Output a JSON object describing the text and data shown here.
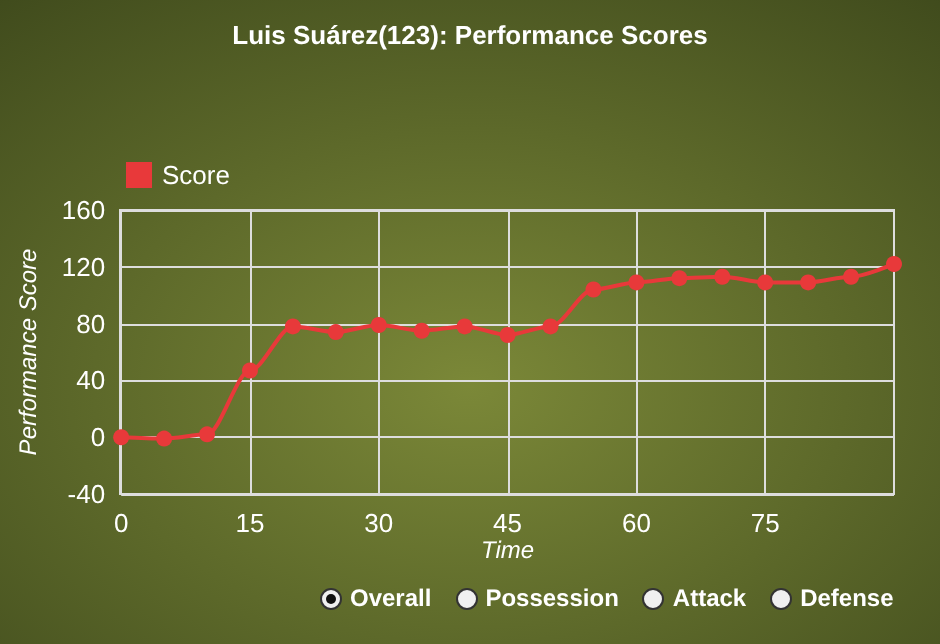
{
  "chart_data": {
    "type": "line",
    "title": "Luis Suárez(123): Performance Scores",
    "xlabel": "Time",
    "ylabel": "Performance Score",
    "x": [
      0,
      5,
      10,
      15,
      20,
      25,
      30,
      35,
      40,
      45,
      50,
      55,
      60,
      65,
      70,
      75,
      80,
      85,
      90
    ],
    "series": [
      {
        "name": "Score",
        "color": "#e8393a",
        "values": [
          0,
          -1,
          2,
          47,
          78,
          74,
          79,
          75,
          78,
          72,
          78,
          104,
          109,
          112,
          113,
          109,
          109,
          113,
          122
        ]
      }
    ],
    "xlim": [
      0,
      90
    ],
    "xticks": [
      0,
      15,
      30,
      45,
      60,
      75
    ],
    "ylim": [
      -40,
      160
    ],
    "yticks": [
      -40,
      0,
      40,
      80,
      120,
      160
    ],
    "grid": true,
    "legend": "top left",
    "marker": "circle",
    "line_style": "solid",
    "annotations": [
      "Overall",
      "Possession",
      "Attack",
      "Defense"
    ]
  }
}
